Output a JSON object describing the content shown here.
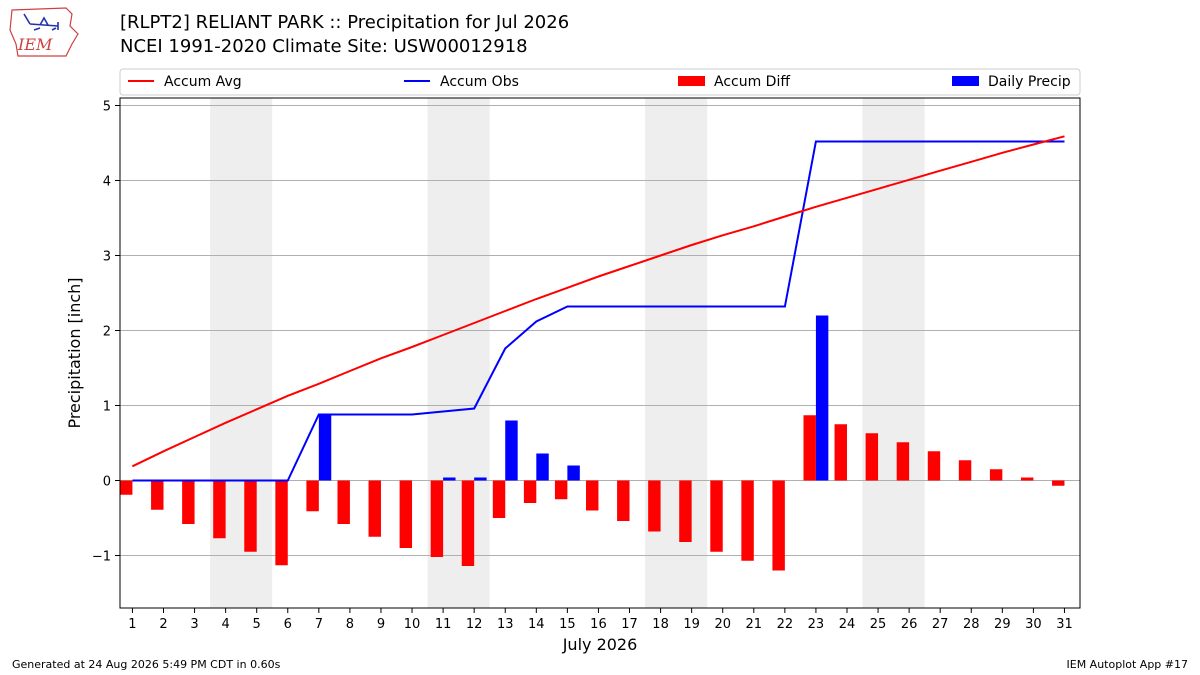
{
  "header": {
    "title_line1": "[RLPT2] RELIANT PARK :: Precipitation for Jul 2026",
    "title_line2": "NCEI 1991-2020 Climate Site: USW00012918",
    "logo_text": "IEM"
  },
  "footer": {
    "generated": "Generated at 24 Aug 2026 5:49 PM CDT in 0.60s",
    "app": "IEM Autoplot App #17"
  },
  "colors": {
    "avg": "#ff0000",
    "obs": "#0000ff",
    "diff": "#ff0000",
    "daily": "#0000ff",
    "weekend_shade": "#eeeeee",
    "grid": "#b0b0b0"
  },
  "chart_data": {
    "type": "bar",
    "xlabel": "July 2026",
    "ylabel": "Precipitation [inch]",
    "ylim": [
      -1.7,
      5.1
    ],
    "yticks": [
      -1,
      0,
      1,
      2,
      3,
      4,
      5
    ],
    "ytick_labels": [
      "−1",
      "0",
      "1",
      "2",
      "3",
      "4",
      "5"
    ],
    "grid": "horizontal",
    "legend_position": "top",
    "legend": [
      "Accum Avg",
      "Accum Obs",
      "Accum Diff",
      "Daily Precip"
    ],
    "days": [
      1,
      2,
      3,
      4,
      5,
      6,
      7,
      8,
      9,
      10,
      11,
      12,
      13,
      14,
      15,
      16,
      17,
      18,
      19,
      20,
      21,
      22,
      23,
      24,
      25,
      26,
      27,
      28,
      29,
      30,
      31
    ],
    "shaded_weekends": [
      [
        4,
        5
      ],
      [
        11,
        12
      ],
      [
        18,
        19
      ],
      [
        25,
        26
      ]
    ],
    "series": [
      {
        "name": "Accum Avg",
        "kind": "line",
        "values": [
          0.19,
          0.39,
          0.58,
          0.77,
          0.95,
          1.13,
          1.29,
          1.46,
          1.63,
          1.78,
          1.94,
          2.1,
          2.26,
          2.42,
          2.57,
          2.72,
          2.86,
          3.0,
          3.14,
          3.27,
          3.39,
          3.52,
          3.65,
          3.77,
          3.89,
          4.01,
          4.13,
          4.25,
          4.37,
          4.48,
          4.59
        ]
      },
      {
        "name": "Accum Obs",
        "kind": "line",
        "values": [
          0,
          0,
          0,
          0,
          0,
          0,
          0.88,
          0.88,
          0.88,
          0.88,
          0.92,
          0.96,
          1.76,
          2.12,
          2.32,
          2.32,
          2.32,
          2.32,
          2.32,
          2.32,
          2.32,
          2.32,
          4.52,
          4.52,
          4.52,
          4.52,
          4.52,
          4.52,
          4.52,
          4.52,
          4.52
        ]
      },
      {
        "name": "Accum Diff",
        "kind": "bar",
        "values": [
          -0.19,
          -0.39,
          -0.58,
          -0.77,
          -0.95,
          -1.13,
          -0.41,
          -0.58,
          -0.75,
          -0.9,
          -1.02,
          -1.14,
          -0.5,
          -0.3,
          -0.25,
          -0.4,
          -0.54,
          -0.68,
          -0.82,
          -0.95,
          -1.07,
          -1.2,
          0.87,
          0.75,
          0.63,
          0.51,
          0.39,
          0.27,
          0.15,
          0.04,
          -0.07
        ]
      },
      {
        "name": "Daily Precip",
        "kind": "bar",
        "values": [
          0,
          0,
          0,
          0,
          0,
          0,
          0.88,
          0,
          0,
          0,
          0.04,
          0.04,
          0.8,
          0.36,
          0.2,
          0,
          0,
          0,
          0,
          0,
          0,
          0,
          2.2,
          0,
          0,
          0,
          0,
          0,
          0,
          0,
          0
        ]
      }
    ]
  }
}
